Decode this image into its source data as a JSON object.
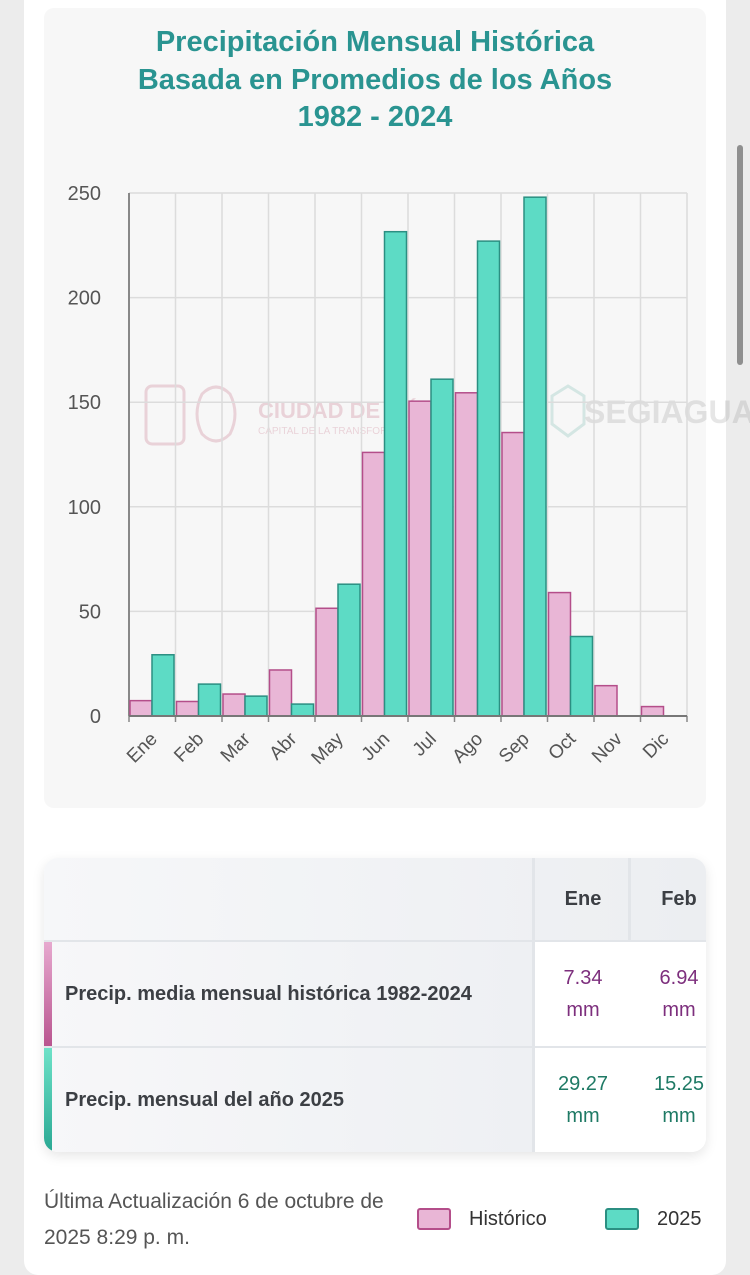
{
  "chart": {
    "title_lines": [
      "Precipitación Mensual Histórica",
      "Basada en Promedios de los Años",
      "1982 - 2024"
    ]
  },
  "watermark": {
    "text1": "CIUDAD DE MÉXICO",
    "text2": "CAPITAL DE LA TRANSFORMACIÓN",
    "text3": "SEGIAGUA"
  },
  "chart_data": {
    "type": "bar",
    "title": "Precipitación Mensual Histórica Basada en Promedios de los Años 1982 - 2024",
    "categories": [
      "Ene",
      "Feb",
      "Mar",
      "Abr",
      "May",
      "Jun",
      "Jul",
      "Ago",
      "Sep",
      "Oct",
      "Nov",
      "Dic"
    ],
    "series": [
      {
        "name": "Histórico",
        "color": "#e9b6d6",
        "stroke": "#b44e8a",
        "values": [
          7.34,
          6.94,
          10.5,
          22.0,
          51.5,
          126.0,
          150.5,
          154.5,
          135.5,
          59.0,
          14.5,
          4.5
        ]
      },
      {
        "name": "2025",
        "color": "#5ddbc5",
        "stroke": "#2b8f82",
        "values": [
          29.27,
          15.25,
          9.5,
          5.7,
          63.0,
          231.5,
          161.0,
          227.0,
          248.0,
          38.0,
          null,
          null
        ]
      }
    ],
    "yticks": [
      0,
      50,
      100,
      150,
      200,
      250
    ],
    "ylim": [
      0,
      250
    ],
    "grid": true,
    "xlabel": "",
    "ylabel": ""
  },
  "table": {
    "headers": [
      "Ene",
      "Feb"
    ],
    "row_hist": {
      "label": "Precip. media mensual histórica 1982-2024",
      "values": [
        {
          "num": "7.34",
          "unit": "mm"
        },
        {
          "num": "6.94",
          "unit": "mm"
        }
      ]
    },
    "row_2025": {
      "label": "Precip. mensual del año 2025",
      "values": [
        {
          "num": "29.27",
          "unit": "mm"
        },
        {
          "num": "15.25",
          "unit": "mm"
        }
      ]
    }
  },
  "footer": {
    "update_text": "Última Actualización 6 de octubre de 2025 8:29 p. m."
  },
  "legend": {
    "hist_label": "Histórico",
    "y2025_label": "2025"
  },
  "colors": {
    "title": "#2a9491",
    "hist_fill": "#e9b6d6",
    "hist_stroke": "#b44e8a",
    "y2025_fill": "#5ddbc5",
    "y2025_stroke": "#2b8f82"
  }
}
